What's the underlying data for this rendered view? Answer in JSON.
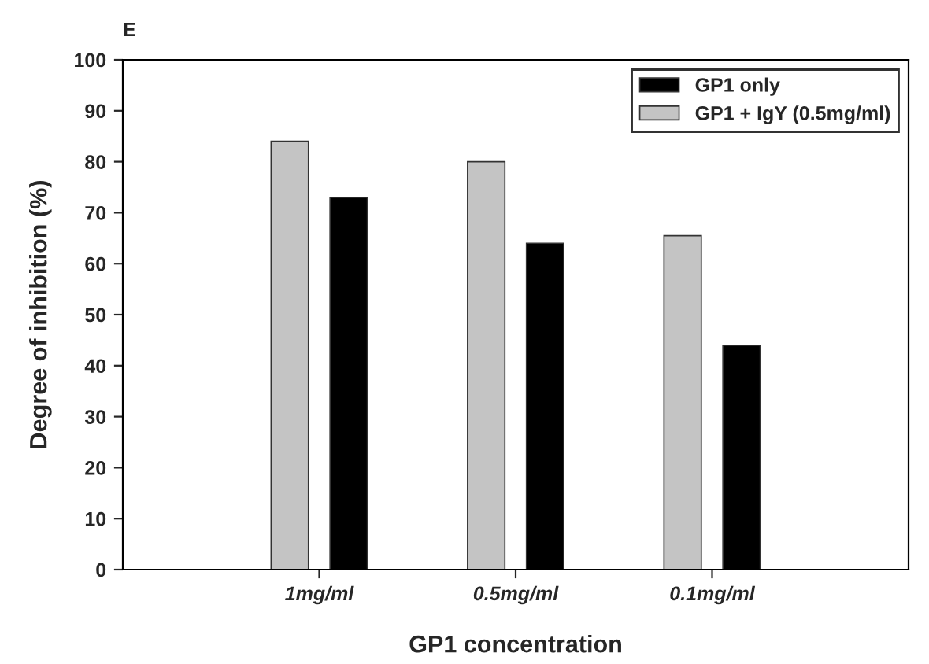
{
  "chart_data": {
    "type": "bar",
    "xlabel": "GP1 concentration",
    "ylabel": "Degree of inhibition (%)",
    "categories": [
      "1mg/ml",
      "0.5mg/ml",
      "0.1mg/ml"
    ],
    "series": [
      {
        "name": "GP1 only",
        "color": "#000000",
        "values": [
          73,
          64,
          44
        ]
      },
      {
        "name": "GP1 + IgY (0.5mg/ml)",
        "color": "#c4c4c4",
        "values": [
          84,
          80,
          65.5
        ]
      }
    ],
    "ylim": [
      0,
      100
    ],
    "yticks": [
      0,
      10,
      20,
      30,
      40,
      50,
      60,
      70,
      80,
      90,
      100
    ],
    "grid": false,
    "legend": "top right",
    "annotations": [
      "E"
    ]
  }
}
